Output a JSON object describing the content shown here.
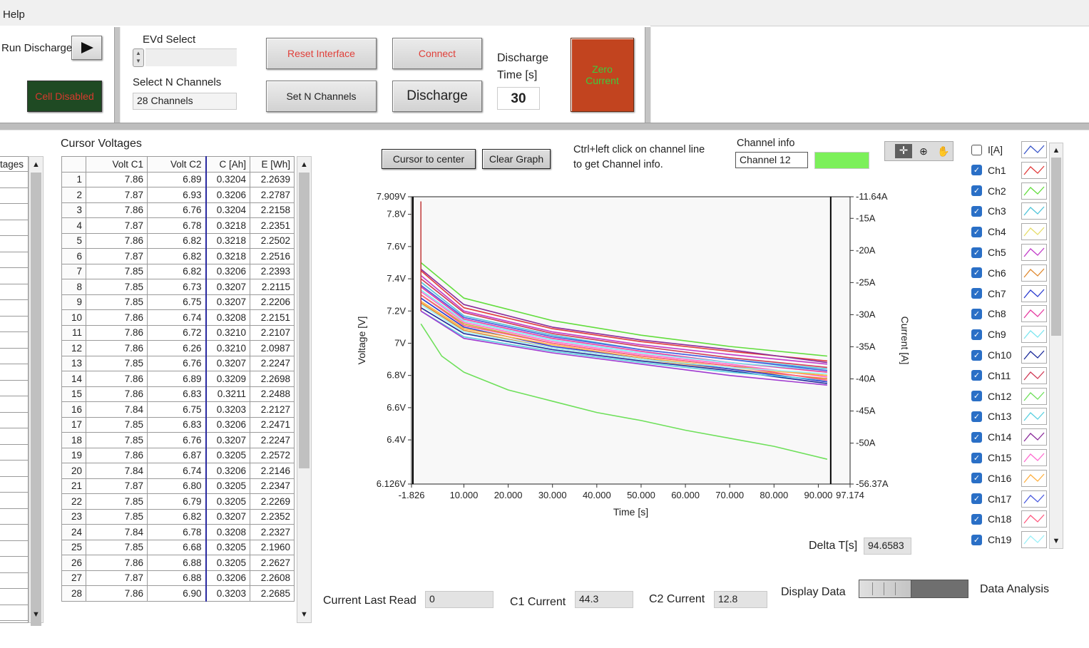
{
  "menu": {
    "help": "Help"
  },
  "toolbar": {
    "run_discharge_label": "Run Discharge",
    "cell_disabled": "Cell Disabled",
    "evd_select_label": "EVd Select",
    "select_n_channels_label": "Select N Channels",
    "n_channels_value": "28 Channels",
    "reset_interface": "Reset Interface",
    "set_n_channels": "Set N Channels",
    "connect": "Connect",
    "discharge": "Discharge",
    "discharge_time_label_1": "Discharge",
    "discharge_time_label_2": "Time [s]",
    "discharge_time_value": "30",
    "zero_current_1": "Zero",
    "zero_current_2": "Current"
  },
  "left_table": {
    "header": "tages"
  },
  "cursor_voltages": {
    "title": "Cursor Voltages",
    "columns": [
      "",
      "Volt C1",
      "Volt C2",
      "C [Ah]",
      "E [Wh]"
    ],
    "rows": [
      [
        "1",
        "7.86",
        "6.89",
        "0.3204",
        "2.2639"
      ],
      [
        "2",
        "7.87",
        "6.93",
        "0.3206",
        "2.2787"
      ],
      [
        "3",
        "7.86",
        "6.76",
        "0.3204",
        "2.2158"
      ],
      [
        "4",
        "7.87",
        "6.78",
        "0.3218",
        "2.2351"
      ],
      [
        "5",
        "7.86",
        "6.82",
        "0.3218",
        "2.2502"
      ],
      [
        "6",
        "7.87",
        "6.82",
        "0.3218",
        "2.2516"
      ],
      [
        "7",
        "7.85",
        "6.82",
        "0.3206",
        "2.2393"
      ],
      [
        "8",
        "7.85",
        "6.73",
        "0.3207",
        "2.2115"
      ],
      [
        "9",
        "7.85",
        "6.75",
        "0.3207",
        "2.2206"
      ],
      [
        "10",
        "7.86",
        "6.74",
        "0.3208",
        "2.2151"
      ],
      [
        "11",
        "7.86",
        "6.72",
        "0.3210",
        "2.2107"
      ],
      [
        "12",
        "7.86",
        "6.26",
        "0.3210",
        "2.0987"
      ],
      [
        "13",
        "7.85",
        "6.76",
        "0.3207",
        "2.2247"
      ],
      [
        "14",
        "7.86",
        "6.89",
        "0.3209",
        "2.2698"
      ],
      [
        "15",
        "7.86",
        "6.83",
        "0.3211",
        "2.2488"
      ],
      [
        "16",
        "7.84",
        "6.75",
        "0.3203",
        "2.2127"
      ],
      [
        "17",
        "7.85",
        "6.83",
        "0.3206",
        "2.2471"
      ],
      [
        "18",
        "7.85",
        "6.76",
        "0.3207",
        "2.2247"
      ],
      [
        "19",
        "7.86",
        "6.87",
        "0.3205",
        "2.2572"
      ],
      [
        "20",
        "7.84",
        "6.74",
        "0.3206",
        "2.2146"
      ],
      [
        "21",
        "7.87",
        "6.80",
        "0.3205",
        "2.2347"
      ],
      [
        "22",
        "7.85",
        "6.79",
        "0.3205",
        "2.2269"
      ],
      [
        "23",
        "7.85",
        "6.82",
        "0.3207",
        "2.2352"
      ],
      [
        "24",
        "7.84",
        "6.78",
        "0.3208",
        "2.2327"
      ],
      [
        "25",
        "7.85",
        "6.68",
        "0.3205",
        "2.1960"
      ],
      [
        "26",
        "7.86",
        "6.88",
        "0.3205",
        "2.2627"
      ],
      [
        "27",
        "7.87",
        "6.88",
        "0.3206",
        "2.2608"
      ],
      [
        "28",
        "7.86",
        "6.90",
        "0.3203",
        "2.2685"
      ]
    ]
  },
  "graph_controls": {
    "cursor_to_center": "Cursor to center",
    "clear_graph": "Clear Graph",
    "hint_1": "Ctrl+left click on channel line",
    "hint_2": "to get Channel info.",
    "channel_info_label": "Channel info",
    "channel_info_value": "Channel 12",
    "channel_color": "#7cf05a"
  },
  "chart_data": {
    "type": "line",
    "xlabel": "Time [s]",
    "ylabel": "Voltage [V]",
    "y2label": "Current [A]",
    "xlim": [
      -1.826,
      97.174
    ],
    "ylim": [
      6.126,
      7.909
    ],
    "y2lim": [
      -56.37,
      -11.64
    ],
    "x_ticks": [
      "-1.826",
      "10.000",
      "20.000",
      "30.000",
      "40.000",
      "50.000",
      "60.000",
      "70.000",
      "80.000",
      "90.000",
      "97.174"
    ],
    "x_tick_values": [
      -1.826,
      10,
      20,
      30,
      40,
      50,
      60,
      70,
      80,
      90,
      97.174
    ],
    "y_ticks": [
      "7.909V",
      "7.8V",
      "7.6V",
      "7.4V",
      "7.2V",
      "7V",
      "6.8V",
      "6.6V",
      "6.4V",
      "6.126V"
    ],
    "y_tick_values": [
      7.909,
      7.8,
      7.6,
      7.4,
      7.2,
      7.0,
      6.8,
      6.6,
      6.4,
      6.126
    ],
    "y2_ticks": [
      "-11.64A",
      "-15A",
      "-20A",
      "-25A",
      "-30A",
      "-35A",
      "-40A",
      "-45A",
      "-50A",
      "-56.37A"
    ],
    "y2_tick_values": [
      -11.64,
      -15,
      -20,
      -25,
      -30,
      -35,
      -40,
      -45,
      -50,
      -56.37
    ],
    "cursor_x": [
      -1.826,
      92.8
    ],
    "series": [
      {
        "color": "#e23b3b",
        "values": [
          [
            0.3,
            7.45
          ],
          [
            10,
            7.22
          ],
          [
            30,
            7.09
          ],
          [
            50,
            7.01
          ],
          [
            70,
            6.95
          ],
          [
            92,
            6.89
          ]
        ]
      },
      {
        "color": "#62dd3c",
        "values": [
          [
            0.3,
            7.5
          ],
          [
            10,
            7.28
          ],
          [
            30,
            7.14
          ],
          [
            50,
            7.05
          ],
          [
            70,
            6.98
          ],
          [
            92,
            6.92
          ]
        ]
      },
      {
        "color": "#4fc4d9",
        "values": [
          [
            0.3,
            7.38
          ],
          [
            10,
            7.17
          ],
          [
            30,
            7.05
          ],
          [
            50,
            6.96
          ],
          [
            70,
            6.9
          ],
          [
            92,
            6.84
          ]
        ]
      },
      {
        "color": "#c9b03a",
        "values": [
          [
            0.3,
            7.3
          ],
          [
            10,
            7.12
          ],
          [
            30,
            7.0
          ],
          [
            50,
            6.92
          ],
          [
            70,
            6.86
          ],
          [
            92,
            6.8
          ]
        ]
      },
      {
        "color": "#c23ac9",
        "values": [
          [
            0.3,
            7.42
          ],
          [
            10,
            7.2
          ],
          [
            30,
            7.07
          ],
          [
            50,
            6.99
          ],
          [
            70,
            6.93
          ],
          [
            92,
            6.87
          ]
        ]
      },
      {
        "color": "#e08a30",
        "values": [
          [
            0.3,
            7.25
          ],
          [
            10,
            7.08
          ],
          [
            30,
            6.97
          ],
          [
            50,
            6.9
          ],
          [
            70,
            6.84
          ],
          [
            92,
            6.78
          ]
        ]
      },
      {
        "color": "#2a3bd0",
        "values": [
          [
            0.3,
            7.28
          ],
          [
            10,
            7.1
          ],
          [
            30,
            6.98
          ],
          [
            50,
            6.91
          ],
          [
            70,
            6.84
          ],
          [
            92,
            6.76
          ]
        ]
      },
      {
        "color": "#e63aa0",
        "values": [
          [
            0.3,
            7.35
          ],
          [
            10,
            7.15
          ],
          [
            30,
            7.03
          ],
          [
            50,
            6.95
          ],
          [
            70,
            6.88
          ],
          [
            92,
            6.82
          ]
        ]
      },
      {
        "color": "#7ce6f0",
        "values": [
          [
            0.3,
            7.33
          ],
          [
            10,
            7.14
          ],
          [
            30,
            7.02
          ],
          [
            50,
            6.94
          ],
          [
            70,
            6.88
          ],
          [
            92,
            6.83
          ]
        ]
      },
      {
        "color": "#1a2a9a",
        "values": [
          [
            0.3,
            7.22
          ],
          [
            10,
            7.06
          ],
          [
            30,
            6.96
          ],
          [
            50,
            6.89
          ],
          [
            70,
            6.83
          ],
          [
            92,
            6.75
          ]
        ]
      },
      {
        "color": "#d03a55",
        "values": [
          [
            0.3,
            7.4
          ],
          [
            10,
            7.19
          ],
          [
            30,
            7.06
          ],
          [
            50,
            6.98
          ],
          [
            70,
            6.91
          ],
          [
            92,
            6.85
          ]
        ]
      },
      {
        "color": "#6ee05a",
        "values": [
          [
            0.3,
            7.12
          ],
          [
            5,
            6.92
          ],
          [
            10,
            6.82
          ],
          [
            20,
            6.71
          ],
          [
            30,
            6.64
          ],
          [
            40,
            6.57
          ],
          [
            50,
            6.52
          ],
          [
            60,
            6.46
          ],
          [
            70,
            6.41
          ],
          [
            80,
            6.36
          ],
          [
            92,
            6.28
          ]
        ]
      },
      {
        "color": "#5ad0e0",
        "values": [
          [
            0.3,
            7.2
          ],
          [
            10,
            7.04
          ],
          [
            30,
            6.95
          ],
          [
            50,
            6.88
          ],
          [
            70,
            6.82
          ],
          [
            92,
            6.77
          ]
        ]
      },
      {
        "color": "#8a2a9a",
        "values": [
          [
            0.3,
            7.46
          ],
          [
            10,
            7.24
          ],
          [
            30,
            7.1
          ],
          [
            50,
            7.02
          ],
          [
            70,
            6.96
          ],
          [
            92,
            6.88
          ]
        ]
      },
      {
        "color": "#ff6ad0",
        "values": [
          [
            0.3,
            7.32
          ],
          [
            10,
            7.13
          ],
          [
            30,
            7.01
          ],
          [
            50,
            6.93
          ],
          [
            70,
            6.87
          ],
          [
            92,
            6.79
          ]
        ]
      },
      {
        "color": "#ffb040",
        "values": [
          [
            0.3,
            7.26
          ],
          [
            10,
            7.09
          ],
          [
            30,
            6.99
          ],
          [
            50,
            6.91
          ],
          [
            70,
            6.85
          ],
          [
            92,
            6.8
          ]
        ]
      },
      {
        "color": "#4a5ae0",
        "values": [
          [
            0.3,
            7.36
          ],
          [
            10,
            7.16
          ],
          [
            30,
            7.04
          ],
          [
            50,
            6.96
          ],
          [
            70,
            6.9
          ],
          [
            92,
            6.83
          ]
        ]
      },
      {
        "color": "#ff5a80",
        "values": [
          [
            0.3,
            7.3
          ],
          [
            10,
            7.11
          ],
          [
            30,
            7.0
          ],
          [
            50,
            6.92
          ],
          [
            70,
            6.86
          ],
          [
            92,
            6.77
          ]
        ]
      },
      {
        "color": "#9af0f8",
        "values": [
          [
            0.3,
            7.24
          ],
          [
            10,
            7.07
          ],
          [
            30,
            6.97
          ],
          [
            50,
            6.9
          ],
          [
            70,
            6.85
          ],
          [
            92,
            6.81
          ]
        ]
      },
      {
        "color": "#a03ad0",
        "values": [
          [
            0.3,
            7.2
          ],
          [
            10,
            7.03
          ],
          [
            30,
            6.94
          ],
          [
            50,
            6.87
          ],
          [
            70,
            6.8
          ],
          [
            92,
            6.74
          ]
        ]
      }
    ]
  },
  "legend": {
    "items": [
      {
        "name": "I[A]",
        "checked": false,
        "color": "#3a56c9"
      },
      {
        "name": "Ch1",
        "checked": true,
        "color": "#e23b3b"
      },
      {
        "name": "Ch2",
        "checked": true,
        "color": "#62dd3c"
      },
      {
        "name": "Ch3",
        "checked": true,
        "color": "#4fc4d9"
      },
      {
        "name": "Ch4",
        "checked": true,
        "color": "#e6dd6a"
      },
      {
        "name": "Ch5",
        "checked": true,
        "color": "#c23ac9"
      },
      {
        "name": "Ch6",
        "checked": true,
        "color": "#e08a30"
      },
      {
        "name": "Ch7",
        "checked": true,
        "color": "#2a3bd0"
      },
      {
        "name": "Ch8",
        "checked": true,
        "color": "#e63aa0"
      },
      {
        "name": "Ch9",
        "checked": true,
        "color": "#7ce6f0"
      },
      {
        "name": "Ch10",
        "checked": true,
        "color": "#1a2a9a"
      },
      {
        "name": "Ch11",
        "checked": true,
        "color": "#d03a55"
      },
      {
        "name": "Ch12",
        "checked": true,
        "color": "#6ee05a"
      },
      {
        "name": "Ch13",
        "checked": true,
        "color": "#5ad0e0"
      },
      {
        "name": "Ch14",
        "checked": true,
        "color": "#8a2a9a"
      },
      {
        "name": "Ch15",
        "checked": true,
        "color": "#ff6ad0"
      },
      {
        "name": "Ch16",
        "checked": true,
        "color": "#ffb040"
      },
      {
        "name": "Ch17",
        "checked": true,
        "color": "#4a5ae0"
      },
      {
        "name": "Ch18",
        "checked": true,
        "color": "#ff5a80"
      },
      {
        "name": "Ch19",
        "checked": true,
        "color": "#9af0f8"
      }
    ]
  },
  "bottom": {
    "delta_t_label": "Delta T[s]",
    "delta_t_value": "94.6583",
    "current_last_read_label": "Current Last Read",
    "current_last_read_value": "0",
    "c1_current_label": "C1 Current",
    "c1_current_value": "44.3",
    "c2_current_label": "C2 Current",
    "c2_current_value": "12.8",
    "display_data_label": "Display Data",
    "data_analysis_label": "Data Analysis",
    "switch_position": "data-analysis"
  }
}
